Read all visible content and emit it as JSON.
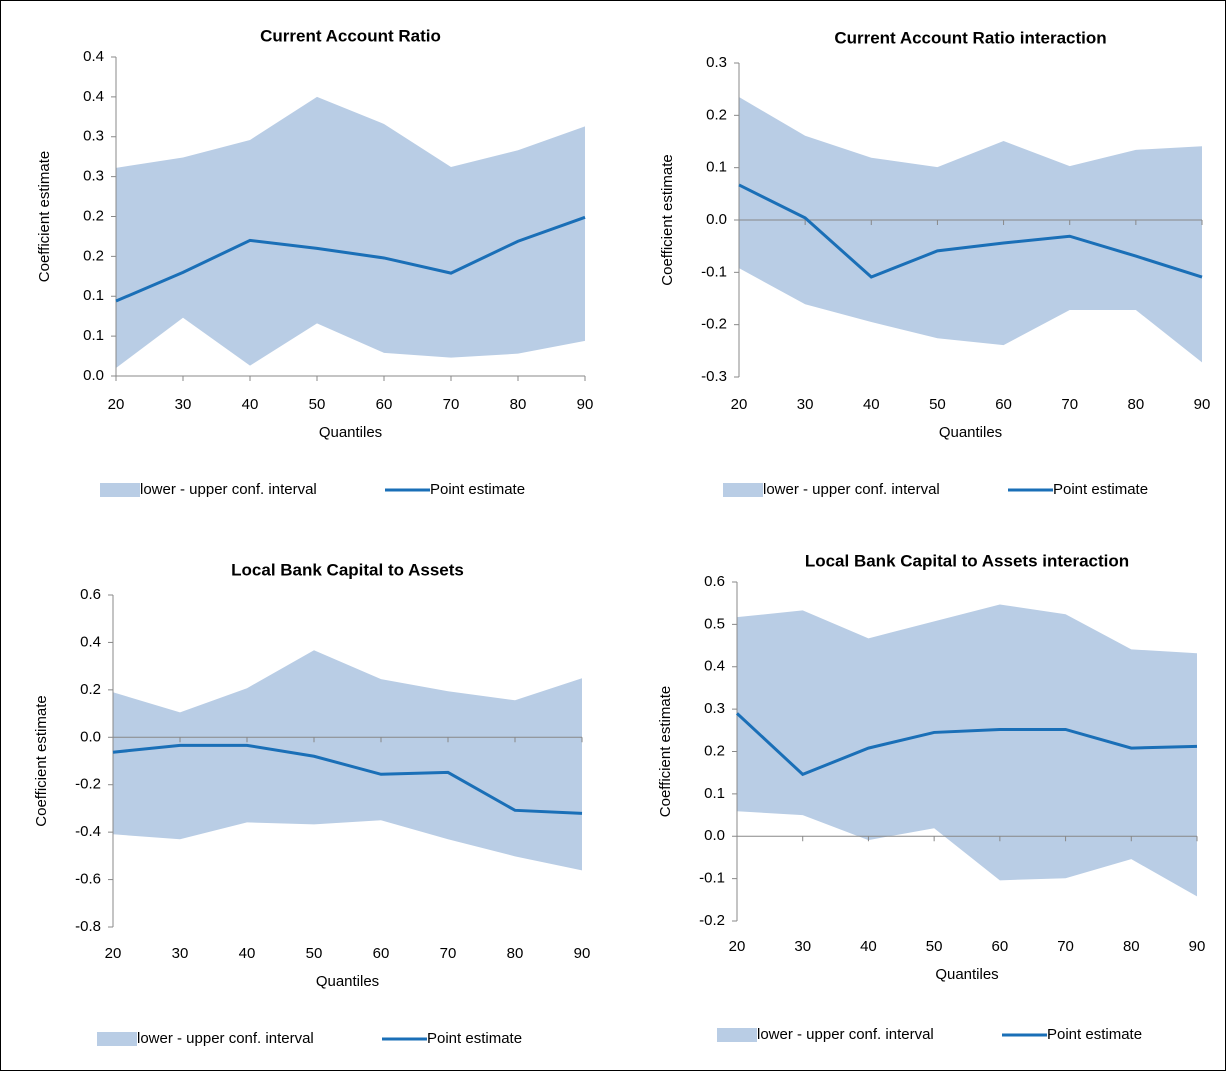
{
  "chart_data": [
    {
      "type": "line",
      "title": "Current Account Ratio",
      "xlabel": "Quantiles",
      "ylabel": "Coefficient estimate",
      "x": [
        20,
        30,
        40,
        50,
        60,
        70,
        80,
        90
      ],
      "xlim": [
        20,
        90
      ],
      "xticks": [
        20,
        30,
        40,
        50,
        60,
        70,
        80,
        90
      ],
      "ylim": [
        0,
        0.4
      ],
      "yticks": [
        {
          "value": 0,
          "label": "0.0"
        },
        {
          "value": 0.05,
          "label": "0.1"
        },
        {
          "value": 0.1,
          "label": "0.1"
        },
        {
          "value": 0.15,
          "label": "0.2"
        },
        {
          "value": 0.2,
          "label": "0.2"
        },
        {
          "value": 0.25,
          "label": "0.3"
        },
        {
          "value": 0.3,
          "label": "0.3"
        },
        {
          "value": 0.35,
          "label": "0.4"
        },
        {
          "value": 0.4,
          "label": "0.4"
        }
      ],
      "series": [
        {
          "name": "lower - upper conf. interval",
          "color": "#b9cde5",
          "lower": [
            0.01,
            0.073,
            0.013,
            0.066,
            0.029,
            0.023,
            0.028,
            0.044
          ],
          "upper": [
            0.261,
            0.274,
            0.296,
            0.35,
            0.316,
            0.262,
            0.283,
            0.313
          ]
        },
        {
          "name": "Point estimate",
          "color": "#1a6fb7",
          "values": [
            0.094,
            0.13,
            0.17,
            0.16,
            0.148,
            0.129,
            0.169,
            0.199
          ]
        }
      ]
    },
    {
      "type": "line",
      "title": "Current Account Ratio interaction",
      "xlabel": "Quantiles",
      "ylabel": "Coefficient estimate",
      "x": [
        20,
        30,
        40,
        50,
        60,
        70,
        80,
        90
      ],
      "xlim": [
        20,
        90
      ],
      "xticks": [
        20,
        30,
        40,
        50,
        60,
        70,
        80,
        90
      ],
      "ylim": [
        -0.3,
        0.3
      ],
      "yticks": [
        -0.3,
        -0.2,
        -0.1,
        {
          "value": 0,
          "label": "0.0"
        },
        0.1,
        0.2,
        0.3
      ],
      "series": [
        {
          "name": "lower - upper conf. interval",
          "color": "#b9cde5",
          "lower": [
            -0.092,
            -0.161,
            -0.195,
            -0.226,
            -0.239,
            -0.172,
            -0.172,
            -0.272
          ],
          "upper": [
            0.235,
            0.161,
            0.119,
            0.101,
            0.151,
            0.103,
            0.134,
            0.141
          ]
        },
        {
          "name": "Point estimate",
          "color": "#1a6fb7",
          "values": [
            0.067,
            0.004,
            -0.109,
            -0.059,
            -0.044,
            -0.031,
            -0.069,
            -0.109
          ]
        }
      ]
    },
    {
      "type": "line",
      "title": "Local Bank Capital to Assets",
      "xlabel": "Quantiles",
      "ylabel": "Coefficient estimate",
      "x": [
        20,
        30,
        40,
        50,
        60,
        70,
        80,
        90
      ],
      "xlim": [
        20,
        90
      ],
      "xticks": [
        20,
        30,
        40,
        50,
        60,
        70,
        80,
        90
      ],
      "ylim": [
        -0.8,
        0.6
      ],
      "yticks": [
        -0.8,
        -0.6,
        -0.4,
        -0.2,
        {
          "value": 0,
          "label": "0.0"
        },
        0.2,
        0.4,
        0.6
      ],
      "series": [
        {
          "name": "lower - upper conf. interval",
          "color": "#b9cde5",
          "lower": [
            -0.409,
            -0.43,
            -0.359,
            -0.367,
            -0.35,
            -0.43,
            -0.502,
            -0.561
          ],
          "upper": [
            0.19,
            0.105,
            0.207,
            0.367,
            0.245,
            0.194,
            0.156,
            0.249
          ]
        },
        {
          "name": "Point estimate",
          "color": "#1a6fb7",
          "values": [
            -0.063,
            -0.034,
            -0.034,
            -0.08,
            -0.156,
            -0.148,
            -0.308,
            -0.321
          ]
        }
      ]
    },
    {
      "type": "line",
      "title": "Local Bank Capital  to Assets interaction",
      "xlabel": "Quantiles",
      "ylabel": "Coefficient estimate",
      "x": [
        20,
        30,
        40,
        50,
        60,
        70,
        80,
        90
      ],
      "xlim": [
        20,
        90
      ],
      "xticks": [
        20,
        30,
        40,
        50,
        60,
        70,
        80,
        90
      ],
      "ylim": [
        -0.2,
        0.6
      ],
      "yticks": [
        -0.2,
        -0.1,
        {
          "value": 0,
          "label": "0.0"
        },
        0.1,
        0.2,
        0.3,
        0.4,
        0.5,
        0.6
      ],
      "series": [
        {
          "name": "lower - upper conf. interval",
          "color": "#b9cde5",
          "lower": [
            0.059,
            0.05,
            -0.009,
            0.019,
            -0.104,
            -0.099,
            -0.054,
            -0.142
          ],
          "upper": [
            0.517,
            0.533,
            0.467,
            0.507,
            0.547,
            0.524,
            0.441,
            0.432
          ]
        },
        {
          "name": "Point estimate",
          "color": "#1a6fb7",
          "values": [
            0.29,
            0.146,
            0.208,
            0.245,
            0.252,
            0.252,
            0.208,
            0.212
          ]
        }
      ]
    }
  ]
}
